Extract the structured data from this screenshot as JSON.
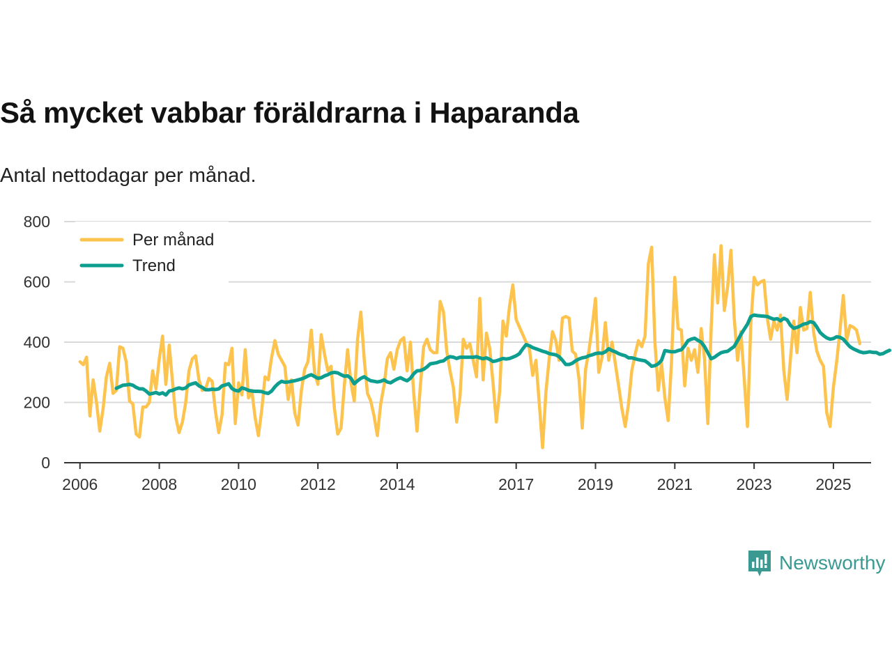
{
  "title": "Så mycket vabbar föräldrarna i Haparanda",
  "subtitle": "Antal nettodagar per månad.",
  "brand": {
    "name": "Newsworthy"
  },
  "colors": {
    "monthly": "#fcc44f",
    "trend": "#0e9e8f",
    "grid": "#d9d9d9",
    "axis": "#333333"
  },
  "chart_data": {
    "type": "line",
    "title": "Så mycket vabbar föräldrarna i Haparanda",
    "ylabel": "Antal nettodagar per månad",
    "xlabel": "",
    "ylim": [
      0,
      800
    ],
    "xlim": [
      2005.6,
      2025.95
    ],
    "yticks": [
      0,
      200,
      400,
      600,
      800
    ],
    "ytick_labels": [
      "0",
      "200",
      "400",
      "600",
      "800"
    ],
    "xticks": [
      2006,
      2008,
      2010,
      2012,
      2014,
      2017,
      2019,
      2021,
      2023,
      2025
    ],
    "xtick_labels": [
      "2006",
      "2008",
      "2010",
      "2012",
      "2014",
      "2017",
      "2019",
      "2021",
      "2023",
      "2025"
    ],
    "grid": true,
    "legend_position": "top-left",
    "series": [
      {
        "name": "Per månad",
        "key": "monthly",
        "x_start": 2006.0,
        "x_step": 0.08333,
        "values": [
          335,
          325,
          350,
          155,
          275,
          200,
          105,
          180,
          285,
          330,
          230,
          240,
          385,
          380,
          335,
          205,
          195,
          95,
          85,
          185,
          185,
          200,
          305,
          245,
          345,
          420,
          260,
          390,
          270,
          150,
          100,
          135,
          200,
          305,
          345,
          355,
          275,
          240,
          245,
          280,
          270,
          170,
          100,
          160,
          330,
          325,
          380,
          130,
          265,
          225,
          375,
          215,
          240,
          150,
          90,
          175,
          285,
          275,
          350,
          405,
          360,
          340,
          320,
          210,
          275,
          165,
          125,
          240,
          310,
          335,
          440,
          300,
          260,
          425,
          360,
          305,
          320,
          180,
          95,
          115,
          255,
          375,
          265,
          205,
          410,
          500,
          345,
          230,
          205,
          155,
          90,
          195,
          255,
          345,
          365,
          310,
          375,
          405,
          415,
          305,
          400,
          230,
          105,
          255,
          385,
          410,
          375,
          365,
          365,
          535,
          500,
          370,
          305,
          250,
          135,
          220,
          410,
          380,
          395,
          340,
          285,
          545,
          275,
          430,
          380,
          265,
          135,
          235,
          470,
          420,
          520,
          590,
          475,
          450,
          425,
          400,
          380,
          290,
          340,
          195,
          50,
          235,
          345,
          435,
          405,
          340,
          480,
          485,
          480,
          370,
          360,
          280,
          115,
          310,
          370,
          450,
          545,
          300,
          350,
          465,
          340,
          400,
          330,
          255,
          180,
          120,
          195,
          305,
          360,
          405,
          385,
          420,
          660,
          715,
          400,
          240,
          330,
          215,
          140,
          330,
          615,
          445,
          440,
          255,
          380,
          340,
          375,
          300,
          445,
          345,
          130,
          445,
          690,
          530,
          720,
          505,
          585,
          705,
          480,
          340,
          435,
          280,
          120,
          460,
          615,
          590,
          600,
          605,
          480,
          410,
          470,
          440,
          490,
          305,
          210,
          345,
          470,
          365,
          515,
          440,
          445,
          565,
          435,
          370,
          340,
          320,
          165,
          120,
          250,
          335,
          440,
          555,
          405,
          455,
          450,
          440,
          395
        ]
      },
      {
        "name": "Trend",
        "key": "trend",
        "x_start": 2006.9167,
        "x_step": 0.08333,
        "values": [
          247,
          252,
          257,
          258,
          260,
          257,
          250,
          245,
          245,
          238,
          228,
          230,
          233,
          228,
          232,
          225,
          238,
          240,
          245,
          248,
          245,
          248,
          258,
          262,
          265,
          255,
          250,
          242,
          242,
          244,
          243,
          245,
          255,
          258,
          262,
          246,
          240,
          238,
          248,
          245,
          240,
          238,
          237,
          237,
          236,
          232,
          230,
          238,
          252,
          263,
          270,
          267,
          268,
          270,
          272,
          275,
          278,
          282,
          288,
          292,
          286,
          280,
          282,
          288,
          292,
          298,
          300,
          298,
          292,
          287,
          288,
          280,
          262,
          272,
          280,
          285,
          278,
          272,
          270,
          268,
          270,
          275,
          268,
          265,
          272,
          278,
          282,
          276,
          272,
          280,
          295,
          305,
          306,
          310,
          318,
          328,
          330,
          332,
          336,
          338,
          347,
          352,
          350,
          346,
          350,
          350,
          350,
          350,
          350,
          352,
          348,
          345,
          348,
          343,
          336,
          338,
          342,
          346,
          344,
          346,
          350,
          355,
          362,
          378,
          392,
          388,
          382,
          378,
          374,
          370,
          367,
          362,
          360,
          358,
          352,
          340,
          326,
          326,
          330,
          338,
          344,
          348,
          350,
          355,
          358,
          362,
          364,
          363,
          368,
          378,
          372,
          368,
          362,
          358,
          355,
          348,
          348,
          345,
          342,
          340,
          338,
          330,
          320,
          322,
          328,
          340,
          372,
          370,
          368,
          368,
          372,
          375,
          388,
          405,
          410,
          413,
          406,
          400,
          385,
          365,
          345,
          350,
          358,
          365,
          368,
          370,
          378,
          386,
          405,
          425,
          443,
          460,
          485,
          490,
          488,
          487,
          486,
          485,
          480,
          476,
          478,
          471,
          479,
          474,
          456,
          446,
          449,
          454,
          460,
          462,
          468,
          465,
          450,
          432,
          422,
          414,
          410,
          412,
          418,
          416,
          410,
          397,
          385,
          378,
          373,
          368,
          365,
          366,
          368,
          366,
          366,
          360,
          362,
          368,
          373
        ]
      }
    ]
  }
}
